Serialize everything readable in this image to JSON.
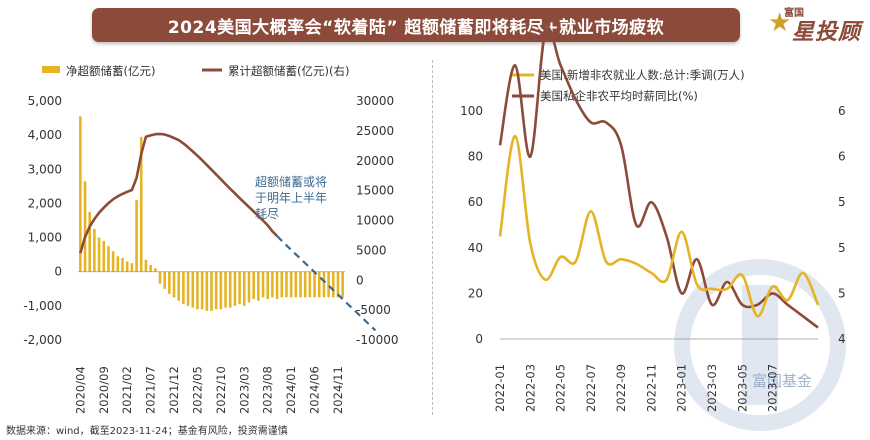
{
  "title": "2024美国大概率会“软着陆” 超额储蓄即将耗尽+就业市场疲软",
  "logo": {
    "small": "富国",
    "big": "星投顾",
    "icon": "star-icon"
  },
  "watermark": "富国基金",
  "source": "数据来源：wind，截至2023-11-24；基金有风险，投资需谨慎",
  "colors": {
    "gold": "#e6b422",
    "brown": "#8c4a3a",
    "dashed": "#3e6a8c",
    "banner": "#8c4a3a"
  },
  "chart_data": [
    {
      "type": "bar+line",
      "legend": [
        "净超额储蓄(亿元)",
        "累计超额储蓄(亿元)(右)"
      ],
      "legend_position": "top",
      "left_axis": {
        "ticks": [
          "5,000",
          "4,000",
          "3,000",
          "2,000",
          "1,000",
          "0",
          "-1,000",
          "-2,000"
        ],
        "ylim": [
          -2000,
          5000
        ]
      },
      "right_axis": {
        "ticks": [
          "30000",
          "25000",
          "20000",
          "15000",
          "10000",
          "5000",
          "0",
          "-5000",
          "-10000"
        ],
        "ylim": [
          -10000,
          30000
        ]
      },
      "x_tick_labels": [
        "2020/04",
        "2020/09",
        "2021/02",
        "2021/07",
        "2021/12",
        "2022/05",
        "2022/10",
        "2023/03",
        "2023/08",
        "2024/01",
        "2024/06",
        "2024/11"
      ],
      "x_range": [
        "2020/04",
        "2024/12"
      ],
      "bar_series": {
        "name": "净超额储蓄(亿元)",
        "start": "2020/04",
        "values": [
          4550,
          2650,
          1750,
          1250,
          1000,
          900,
          750,
          600,
          450,
          400,
          300,
          250,
          2100,
          3950,
          350,
          200,
          100,
          -350,
          -500,
          -650,
          -750,
          -850,
          -950,
          -1000,
          -1050,
          -1100,
          -1100,
          -1150,
          -1150,
          -1100,
          -1100,
          -1050,
          -1050,
          -1000,
          -950,
          -1000,
          -900,
          -800,
          -850,
          -750,
          -800,
          -750,
          -800,
          -750,
          -750,
          -750,
          -750,
          -750,
          -750,
          -750,
          -750,
          -750,
          -750,
          -750,
          -750,
          -750,
          -750
        ]
      },
      "line_series": {
        "name": "累计超额储蓄(亿元)(右)",
        "start": "2020/04",
        "actual_end": "2023/10",
        "values": [
          4550,
          7200,
          9000,
          10250,
          11300,
          12150,
          12900,
          13550,
          14050,
          14450,
          14800,
          15100,
          17150,
          21100,
          24000,
          24250,
          24450,
          24500,
          24400,
          24150,
          23800,
          23450,
          22900,
          22250,
          21550,
          20850,
          20100,
          19300,
          18500,
          17700,
          16900,
          16100,
          15300,
          14550,
          13750,
          13000,
          12250,
          11500,
          10750,
          10000,
          9200,
          8200,
          7400,
          6600,
          5850,
          5100,
          4350,
          3600,
          2850,
          2100,
          1350,
          600,
          -150,
          -900,
          -1650,
          -2400,
          -3150,
          -3900,
          -4650,
          -5400,
          -6150,
          -6900,
          -7650,
          -8400
        ]
      },
      "annotation": [
        "超额储蓄或将",
        "于明年上半年",
        "耗尽"
      ]
    },
    {
      "type": "line",
      "legend": [
        "美国:新增非农就业人数:总计:季调(万人)",
        "美国私企非农平均时薪同比(%)"
      ],
      "legend_position": "top",
      "left_axis": {
        "ticks": [
          "100",
          "80",
          "60",
          "40",
          "20",
          "0"
        ],
        "ylim": [
          0,
          100
        ]
      },
      "right_axis": {
        "ticks": [
          "6",
          "6",
          "5",
          "5",
          "5",
          "4"
        ],
        "ylim": [
          4.0,
          6.0
        ]
      },
      "x_tick_labels": [
        "2022-01",
        "2022-03",
        "2022-05",
        "2022-07",
        "2022-09",
        "2022-11",
        "2023-01",
        "2023-03",
        "2023-05",
        "2023-07"
      ],
      "x_range": [
        "2022-01",
        "2023-10"
      ],
      "series": [
        {
          "name": "美国:新增非农就业人数:总计:季调(万人)",
          "x": [
            "2022-01",
            "2022-02",
            "2022-03",
            "2022-04",
            "2022-05",
            "2022-06",
            "2022-07",
            "2022-08",
            "2022-09",
            "2022-10",
            "2022-11",
            "2022-12",
            "2023-01",
            "2023-02",
            "2023-03",
            "2023-04",
            "2023-05",
            "2023-06",
            "2023-07",
            "2023-08",
            "2023-09",
            "2023-10"
          ],
          "values": [
            45,
            89,
            42,
            26,
            36,
            34,
            56,
            34,
            35,
            33,
            29,
            26,
            47,
            24,
            22,
            22,
            28,
            10,
            23,
            17,
            29,
            15
          ]
        },
        {
          "name": "美国私企非农平均时薪同比(%)",
          "x": [
            "2022-01",
            "2022-02",
            "2022-03",
            "2022-04",
            "2022-05",
            "2022-06",
            "2022-07",
            "2022-08",
            "2022-09",
            "2022-10",
            "2022-11",
            "2022-12",
            "2023-01",
            "2023-02",
            "2023-03",
            "2023-04",
            "2023-05",
            "2023-06",
            "2023-07",
            "2023-08",
            "2023-09",
            "2023-10"
          ],
          "values": [
            5.7,
            6.4,
            5.6,
            6.7,
            6.4,
            6.1,
            5.9,
            5.9,
            5.7,
            5.0,
            5.2,
            4.9,
            4.4,
            4.7,
            4.3,
            4.5,
            4.3,
            4.3,
            4.4,
            4.3,
            4.2,
            4.1
          ]
        }
      ]
    }
  ]
}
